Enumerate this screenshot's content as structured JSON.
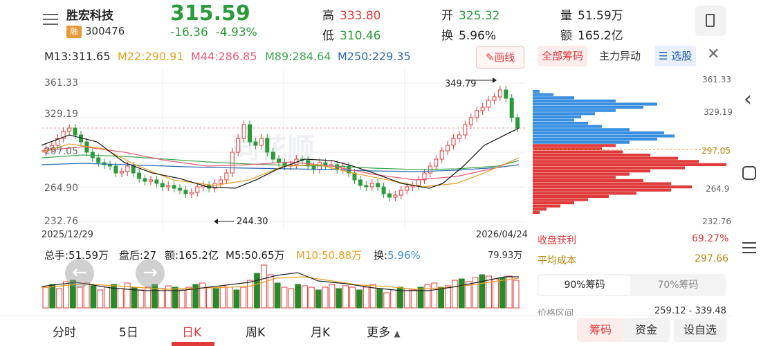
{
  "header": {
    "name": "胜宏科技",
    "badge": "融",
    "code": "300476",
    "price": "315.59",
    "change": "-16.36",
    "change_pct": "-4.93%",
    "high_label": "高",
    "high": "333.80",
    "low_label": "低",
    "low": "310.46",
    "open_label": "开",
    "open": "325.32",
    "turnover_label": "换",
    "turnover": "5.96%",
    "volume_label": "量",
    "volume": "51.59万",
    "amount_label": "额",
    "amount": "165.2亿"
  },
  "ma": {
    "m13": "M13:311.65",
    "m22": "M22:290.91",
    "m44": "M44:286.85",
    "m89": "M89:284.64",
    "m250": "M250:229.35",
    "draw_label": "画线"
  },
  "chart": {
    "y_labels": [
      "361.33",
      "329.19",
      "297.05",
      "264.90",
      "232.76"
    ],
    "start_date": "2025/12/29",
    "end_date": "2026/04/24",
    "high_marker": "349.79",
    "low_marker": "244.30",
    "watermark": "同花顺"
  },
  "chip_tabs": {
    "all": "全部筹码",
    "main": "主力异动",
    "select": "选股"
  },
  "chip_axis": [
    "361.33",
    "329.19",
    "297.05",
    "264.9",
    "232.76"
  ],
  "volume": {
    "total": "总手:51.59万",
    "after": "盘后:27",
    "amount": "额:165.2亿",
    "m5": "M5:50.65万",
    "m10": "M10:50.88万",
    "turn_label": "换:",
    "turn": "5.96%",
    "max": "79.93万"
  },
  "chip_stats": {
    "profit_label": "收盘获利",
    "profit": "69.27%",
    "avg_label": "平均成本",
    "avg": "297.66",
    "pct90": "90%筹码",
    "pct70": "70%筹码",
    "range_label": "价格区间",
    "range": "259.12 - 339.48"
  },
  "bottom_tabs": [
    "分时",
    "5日",
    "日K",
    "周K",
    "月K",
    "更多"
  ],
  "bottom_buttons": {
    "chip": "筹码",
    "fund": "资金",
    "watch": "设自选"
  },
  "colors": {
    "up": "#e03a3a",
    "down": "#2a9a3a",
    "ma13": "#222222",
    "ma22": "#e8a020",
    "ma44": "#e85a7a",
    "ma89": "#3aa84a",
    "ma250": "#2a6ab0"
  }
}
